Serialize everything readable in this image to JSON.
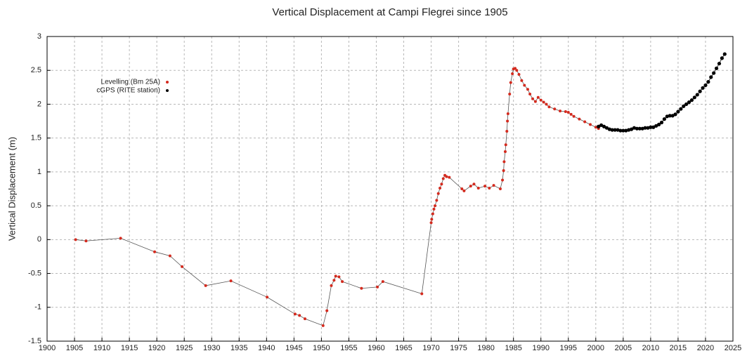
{
  "chart_data": {
    "type": "scatter",
    "title": "Vertical Displacement at Campi Flegrei since 1905",
    "y_label": "Vertical Displacement (m)",
    "xlim": [
      1900,
      2025
    ],
    "xticks": [
      1900,
      1905,
      1910,
      1915,
      1920,
      1925,
      1930,
      1935,
      1940,
      1945,
      1950,
      1955,
      1960,
      1965,
      1970,
      1975,
      1980,
      1985,
      1990,
      1995,
      2000,
      2005,
      2010,
      2015,
      2020,
      2025
    ],
    "ylim": [
      -1.5,
      3
    ],
    "yticks": [
      -1.5,
      -1,
      -0.5,
      0,
      0.5,
      1,
      1.5,
      2,
      2.5,
      3
    ],
    "grid": true,
    "legend": "upper left",
    "series": [
      {
        "name": "Levelling (Bm 25A)",
        "color": "#d42a1e",
        "line_color": "#555555",
        "x": [
          1905.2,
          1907.1,
          1913.4,
          1919.6,
          1922.4,
          1924.6,
          1928.9,
          1933.5,
          1940.1,
          1945.2,
          1946,
          1947,
          1950.3,
          1951,
          1951.8,
          1952.3,
          1952.6,
          1953.2,
          1953.8,
          1957.3,
          1960.2,
          1961.2,
          1968.3,
          1970.0,
          1970.1,
          1970.3,
          1970.5,
          1970.7,
          1971.0,
          1971.3,
          1971.6,
          1971.9,
          1972.2,
          1972.5,
          1972.8,
          1973.3,
          1975.6,
          1976,
          1977.2,
          1977.8,
          1978.6,
          1979.8,
          1980.6,
          1981.4,
          1982.6,
          1983.0,
          1983.2,
          1983.3,
          1983.5,
          1983.6,
          1983.8,
          1983.9,
          1984.0,
          1984.3,
          1984.5,
          1984.8,
          1985.0,
          1985.3,
          1985.6,
          1986,
          1986.5,
          1987,
          1987.6,
          1988,
          1988.5,
          1989,
          1989.5,
          1990,
          1990.5,
          1991,
          1991.5,
          1992.5,
          1993.5,
          1994.5,
          1995,
          1995.5,
          1996,
          1997,
          1998,
          1999,
          2000,
          2000.5
        ],
        "values": [
          0.0,
          -0.02,
          0.02,
          -0.18,
          -0.24,
          -0.4,
          -0.68,
          -0.61,
          -0.85,
          -1.1,
          -1.12,
          -1.17,
          -1.27,
          -1.05,
          -0.68,
          -0.6,
          -0.54,
          -0.55,
          -0.62,
          -0.72,
          -0.7,
          -0.62,
          -0.8,
          0.25,
          0.3,
          0.38,
          0.45,
          0.5,
          0.58,
          0.68,
          0.76,
          0.82,
          0.9,
          0.95,
          0.93,
          0.92,
          0.75,
          0.72,
          0.79,
          0.82,
          0.76,
          0.79,
          0.76,
          0.8,
          0.75,
          0.88,
          1.02,
          1.15,
          1.3,
          1.4,
          1.6,
          1.75,
          1.86,
          2.15,
          2.32,
          2.45,
          2.52,
          2.53,
          2.5,
          2.44,
          2.35,
          2.28,
          2.22,
          2.15,
          2.08,
          2.04,
          2.1,
          2.06,
          2.03,
          2.0,
          1.96,
          1.93,
          1.9,
          1.89,
          1.88,
          1.85,
          1.82,
          1.78,
          1.74,
          1.7,
          1.66,
          1.64
        ]
      },
      {
        "name": "cGPS (RITE station)",
        "color": "#000000",
        "line_color": "#000000",
        "x": [
          2000.5,
          2001,
          2001.5,
          2002,
          2002.5,
          2003,
          2003.5,
          2004,
          2004.5,
          2005,
          2005.5,
          2006,
          2006.5,
          2007,
          2007.5,
          2008,
          2008.5,
          2009,
          2009.5,
          2010,
          2010.5,
          2011,
          2011.5,
          2012,
          2012.5,
          2013,
          2013.5,
          2014,
          2014.5,
          2015,
          2015.5,
          2016,
          2016.5,
          2017,
          2017.5,
          2018,
          2018.5,
          2019,
          2019.5,
          2020,
          2020.5,
          2021,
          2021.5,
          2022,
          2022.5,
          2023,
          2023.5
        ],
        "values": [
          1.67,
          1.69,
          1.67,
          1.65,
          1.63,
          1.62,
          1.62,
          1.62,
          1.61,
          1.61,
          1.61,
          1.62,
          1.63,
          1.65,
          1.64,
          1.64,
          1.64,
          1.65,
          1.65,
          1.66,
          1.66,
          1.68,
          1.7,
          1.73,
          1.78,
          1.82,
          1.83,
          1.83,
          1.85,
          1.89,
          1.93,
          1.97,
          2.0,
          2.03,
          2.06,
          2.1,
          2.14,
          2.19,
          2.24,
          2.28,
          2.33,
          2.4,
          2.46,
          2.53,
          2.6,
          2.68,
          2.74
        ]
      }
    ]
  }
}
